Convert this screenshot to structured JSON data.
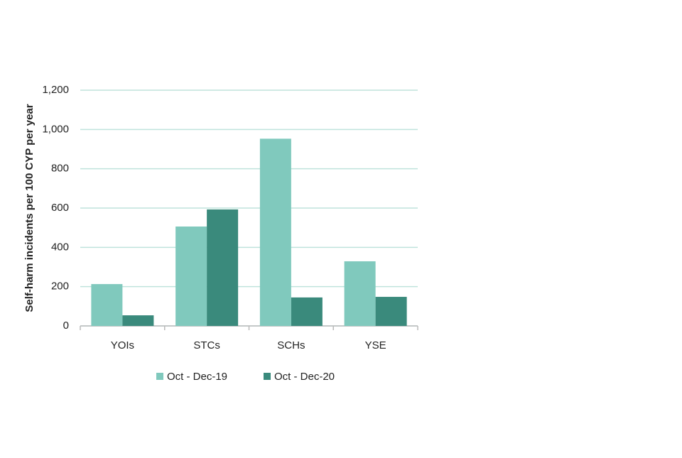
{
  "chart_data": {
    "type": "bar",
    "y_label": "Self-harm incidents per 100 CYP per year",
    "categories": [
      "YOIs",
      "STCs",
      "SCHs",
      "YSE"
    ],
    "series": [
      {
        "name": "Oct - Dec-19",
        "color": "#80c9bd",
        "values": [
          213,
          506,
          953,
          329
        ]
      },
      {
        "name": "Oct - Dec-20",
        "color": "#3a8a7c",
        "values": [
          54,
          593,
          145,
          148
        ]
      }
    ],
    "ylim": [
      0,
      1200
    ],
    "yticks": [
      0,
      200,
      400,
      600,
      800,
      {
        "value": 1000,
        "label": "1,000"
      },
      {
        "value": 1200,
        "label": "1,200"
      }
    ],
    "grid": true,
    "legend": "bottom"
  }
}
